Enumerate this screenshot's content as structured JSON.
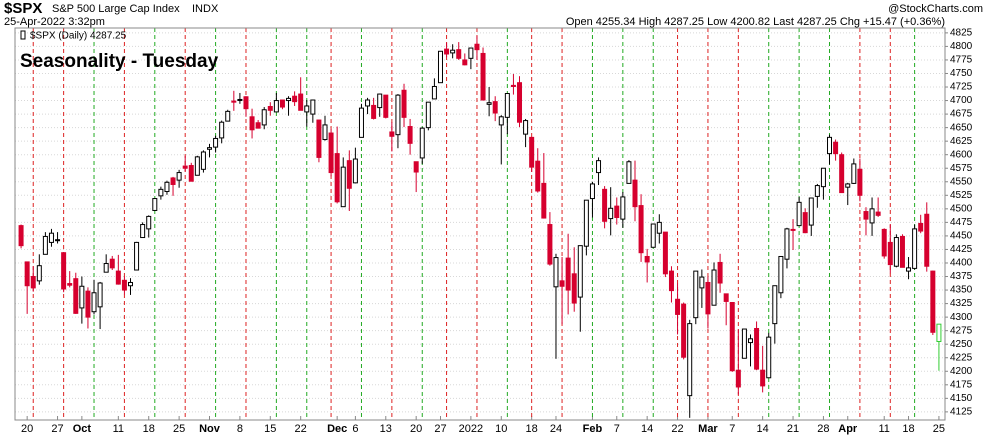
{
  "chart_data": {
    "type": "candlestick",
    "symbol": "$SPX",
    "name": "S&P 500 Large Cap Index",
    "exchange": "INDX",
    "date": "25-Apr-2022 3:32pm",
    "quote": "Open 4255.34 High 4287.25 Low 4200.82 Last 4287.25 Chg +15.47 (+0.36%)",
    "credit": "@StockCharts.com",
    "legend": "$SPX (Daily) 4287.25",
    "annotation": "Seasonality - Tuesday",
    "up_color": "#000000",
    "down_color": "#d6002e",
    "last_color": "#33cc33",
    "annotation_color": "#1030e0",
    "grid": true,
    "ylim": [
      4110,
      4834
    ],
    "xlim": [
      -1,
      152
    ],
    "yticks": [
      4125,
      4150,
      4175,
      4200,
      4225,
      4250,
      4275,
      4300,
      4325,
      4350,
      4375,
      4400,
      4425,
      4450,
      4475,
      4500,
      4525,
      4550,
      4575,
      4600,
      4625,
      4650,
      4675,
      4700,
      4725,
      4750,
      4775,
      4800,
      4825
    ],
    "xticks": [
      {
        "value": 1,
        "label": "20"
      },
      {
        "value": 6,
        "label": "27"
      },
      {
        "value": 10,
        "label": "Oct"
      },
      {
        "value": 16,
        "label": "11"
      },
      {
        "value": 21,
        "label": "18"
      },
      {
        "value": 26,
        "label": "25"
      },
      {
        "value": 31,
        "label": "Nov"
      },
      {
        "value": 36,
        "label": "8"
      },
      {
        "value": 41,
        "label": "15"
      },
      {
        "value": 46,
        "label": "22"
      },
      {
        "value": 52,
        "label": "Dec"
      },
      {
        "value": 55,
        "label": "6"
      },
      {
        "value": 60,
        "label": "13"
      },
      {
        "value": 65,
        "label": "20"
      },
      {
        "value": 69,
        "label": "27"
      },
      {
        "value": 74,
        "label": "2022"
      },
      {
        "value": 79,
        "label": "10"
      },
      {
        "value": 84,
        "label": "18"
      },
      {
        "value": 88,
        "label": "24"
      },
      {
        "value": 94,
        "label": "Feb"
      },
      {
        "value": 98,
        "label": "7"
      },
      {
        "value": 103,
        "label": "14"
      },
      {
        "value": 108,
        "label": "22"
      },
      {
        "value": 113,
        "label": "Mar"
      },
      {
        "value": 117,
        "label": "7"
      },
      {
        "value": 122,
        "label": "14"
      },
      {
        "value": 127,
        "label": "21"
      },
      {
        "value": 132,
        "label": "28"
      },
      {
        "value": 136,
        "label": "Apr"
      },
      {
        "value": 142,
        "label": "11"
      },
      {
        "value": 146,
        "label": "18"
      },
      {
        "value": 151,
        "label": "25"
      }
    ],
    "ohlc": [
      [
        4469,
        4471,
        4427,
        4432
      ],
      [
        4402,
        4402,
        4306,
        4358
      ],
      [
        4375,
        4394,
        4347,
        4354
      ],
      [
        4367,
        4416,
        4360,
        4395
      ],
      [
        4416,
        4457,
        4416,
        4449
      ],
      [
        4438,
        4463,
        4430,
        4455
      ],
      [
        4442,
        4457,
        4436,
        4443
      ],
      [
        4419,
        4420,
        4346,
        4352
      ],
      [
        4362,
        4385,
        4355,
        4359
      ],
      [
        4371,
        4382,
        4306,
        4307
      ],
      [
        4317,
        4375,
        4288,
        4357
      ],
      [
        4348,
        4355,
        4279,
        4300
      ],
      [
        4310,
        4369,
        4305,
        4345
      ],
      [
        4319,
        4365,
        4278,
        4363
      ],
      [
        4383,
        4416,
        4383,
        4399
      ],
      [
        4407,
        4413,
        4387,
        4391
      ],
      [
        4385,
        4415,
        4360,
        4361
      ],
      [
        4368,
        4375,
        4342,
        4350
      ],
      [
        4358,
        4372,
        4341,
        4364
      ],
      [
        4387,
        4439,
        4387,
        4438
      ],
      [
        4447,
        4475,
        4447,
        4471
      ],
      [
        4463,
        4488,
        4447,
        4486
      ],
      [
        4497,
        4520,
        4496,
        4519
      ],
      [
        4524,
        4541,
        4517,
        4536
      ],
      [
        4532,
        4552,
        4526,
        4549
      ],
      [
        4557,
        4559,
        4524,
        4545
      ],
      [
        4553,
        4572,
        4539,
        4567
      ],
      [
        4579,
        4598,
        4569,
        4575
      ],
      [
        4580,
        4585,
        4551,
        4551
      ],
      [
        4562,
        4598,
        4562,
        4596
      ],
      [
        4573,
        4608,
        4567,
        4605
      ],
      [
        4610,
        4620,
        4595,
        4613
      ],
      [
        4614,
        4635,
        4604,
        4630
      ],
      [
        4631,
        4663,
        4621,
        4660
      ],
      [
        4662,
        4683,
        4662,
        4680
      ],
      [
        4699,
        4718,
        4681,
        4697
      ],
      [
        4701,
        4714,
        4694,
        4702
      ],
      [
        4707,
        4708,
        4670,
        4685
      ],
      [
        4670,
        4685,
        4630,
        4646
      ],
      [
        4659,
        4664,
        4649,
        4649
      ],
      [
        4655,
        4688,
        4647,
        4683
      ],
      [
        4689,
        4697,
        4672,
        4682
      ],
      [
        4679,
        4714,
        4679,
        4700
      ],
      [
        4701,
        4701,
        4684,
        4688
      ],
      [
        4700,
        4708,
        4672,
        4704
      ],
      [
        4708,
        4717,
        4690,
        4698
      ],
      [
        4712,
        4743,
        4682,
        4682
      ],
      [
        4679,
        4701,
        4652,
        4690
      ],
      [
        4675,
        4702,
        4659,
        4701
      ],
      [
        4664,
        4664,
        4586,
        4595
      ],
      [
        4628,
        4672,
        4626,
        4655
      ],
      [
        4640,
        4647,
        4560,
        4567
      ],
      [
        4602,
        4652,
        4510,
        4513
      ],
      [
        4504,
        4595,
        4504,
        4577
      ],
      [
        4589,
        4608,
        4496,
        4538
      ],
      [
        4548,
        4613,
        4547,
        4592
      ],
      [
        4632,
        4694,
        4632,
        4686
      ],
      [
        4690,
        4705,
        4675,
        4701
      ],
      [
        4691,
        4705,
        4665,
        4667
      ],
      [
        4687,
        4713,
        4670,
        4712
      ],
      [
        4710,
        4710,
        4667,
        4669
      ],
      [
        4642,
        4660,
        4606,
        4634
      ],
      [
        4637,
        4712,
        4612,
        4710
      ],
      [
        4719,
        4731,
        4651,
        4669
      ],
      [
        4652,
        4666,
        4600,
        4621
      ],
      [
        4587,
        4587,
        4531,
        4568
      ],
      [
        4594,
        4651,
        4583,
        4649
      ],
      [
        4650,
        4697,
        4645,
        4697
      ],
      [
        4703,
        4741,
        4703,
        4726
      ],
      [
        4733,
        4791,
        4733,
        4791
      ],
      [
        4795,
        4807,
        4780,
        4786
      ],
      [
        4788,
        4804,
        4778,
        4793
      ],
      [
        4794,
        4808,
        4775,
        4778
      ],
      [
        4775,
        4787,
        4765,
        4766
      ],
      [
        4778,
        4797,
        4758,
        4797
      ],
      [
        4804,
        4819,
        4775,
        4794
      ],
      [
        4787,
        4798,
        4700,
        4701
      ],
      [
        4693,
        4725,
        4671,
        4696
      ],
      [
        4698,
        4708,
        4662,
        4677
      ],
      [
        4655,
        4673,
        4582,
        4670
      ],
      [
        4669,
        4714,
        4638,
        4713
      ],
      [
        4728,
        4749,
        4711,
        4726
      ],
      [
        4733,
        4745,
        4651,
        4660
      ],
      [
        4638,
        4666,
        4614,
        4663
      ],
      [
        4632,
        4632,
        4568,
        4577
      ],
      [
        4588,
        4612,
        4530,
        4533
      ],
      [
        4547,
        4603,
        4482,
        4483
      ],
      [
        4471,
        4494,
        4395,
        4398
      ],
      [
        4356,
        4417,
        4223,
        4410
      ],
      [
        4367,
        4411,
        4287,
        4357
      ],
      [
        4409,
        4454,
        4305,
        4350
      ],
      [
        4380,
        4429,
        4310,
        4326
      ],
      [
        4337,
        4432,
        4273,
        4432
      ],
      [
        4431,
        4516,
        4414,
        4516
      ],
      [
        4519,
        4550,
        4484,
        4546
      ],
      [
        4567,
        4595,
        4544,
        4589
      ],
      [
        4536,
        4542,
        4464,
        4477
      ],
      [
        4482,
        4540,
        4451,
        4501
      ],
      [
        4505,
        4521,
        4471,
        4484
      ],
      [
        4481,
        4531,
        4465,
        4522
      ],
      [
        4547,
        4590,
        4547,
        4587
      ],
      [
        4553,
        4589,
        4477,
        4504
      ],
      [
        4506,
        4527,
        4402,
        4419
      ],
      [
        4412,
        4426,
        4364,
        4402
      ],
      [
        4429,
        4472,
        4429,
        4472
      ],
      [
        4455,
        4490,
        4436,
        4475
      ],
      [
        4457,
        4457,
        4374,
        4380
      ],
      [
        4385,
        4394,
        4327,
        4349
      ],
      [
        4333,
        4362,
        4268,
        4305
      ],
      [
        4324,
        4327,
        4222,
        4226
      ],
      [
        4155,
        4295,
        4114,
        4288
      ],
      [
        4299,
        4385,
        4287,
        4385
      ],
      [
        4354,
        4388,
        4317,
        4374
      ],
      [
        4364,
        4375,
        4279,
        4306
      ],
      [
        4322,
        4401,
        4322,
        4387
      ],
      [
        4401,
        4417,
        4345,
        4363
      ],
      [
        4343,
        4343,
        4285,
        4329
      ],
      [
        4327,
        4327,
        4199,
        4201
      ],
      [
        4202,
        4277,
        4157,
        4171
      ],
      [
        4224,
        4277,
        4224,
        4278
      ],
      [
        4253,
        4268,
        4209,
        4260
      ],
      [
        4279,
        4292,
        4202,
        4204
      ],
      [
        4202,
        4247,
        4161,
        4173
      ],
      [
        4188,
        4271,
        4188,
        4263
      ],
      [
        4288,
        4358,
        4251,
        4358
      ],
      [
        4345,
        4412,
        4335,
        4412
      ],
      [
        4407,
        4465,
        4390,
        4463
      ],
      [
        4462,
        4481,
        4424,
        4461
      ],
      [
        4469,
        4522,
        4469,
        4512
      ],
      [
        4493,
        4501,
        4455,
        4456
      ],
      [
        4470,
        4520,
        4450,
        4520
      ],
      [
        4523,
        4546,
        4502,
        4543
      ],
      [
        4541,
        4575,
        4517,
        4575
      ],
      [
        4602,
        4637,
        4582,
        4632
      ],
      [
        4623,
        4628,
        4589,
        4602
      ],
      [
        4600,
        4604,
        4530,
        4530
      ],
      [
        4540,
        4548,
        4507,
        4546
      ],
      [
        4547,
        4593,
        4546,
        4583
      ],
      [
        4573,
        4593,
        4514,
        4525
      ],
      [
        4495,
        4503,
        4451,
        4481
      ],
      [
        4474,
        4521,
        4450,
        4500
      ],
      [
        4494,
        4521,
        4485,
        4488
      ],
      [
        4462,
        4464,
        4408,
        4413
      ],
      [
        4438,
        4471,
        4381,
        4397
      ],
      [
        4394,
        4453,
        4392,
        4447
      ],
      [
        4449,
        4453,
        4392,
        4392
      ],
      [
        4385,
        4411,
        4370,
        4391
      ],
      [
        4390,
        4471,
        4388,
        4463
      ],
      [
        4473,
        4489,
        4455,
        4459
      ],
      [
        4490,
        4512,
        4384,
        4394
      ],
      [
        4385,
        4386,
        4267,
        4272
      ],
      [
        4255,
        4287,
        4201,
        4287
      ]
    ]
  }
}
